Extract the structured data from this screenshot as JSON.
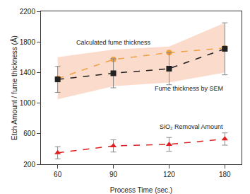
{
  "chart_data": {
    "type": "line",
    "x_label": "Process Time (sec.)",
    "y_label": "Etch Amount / fume thickness (Å)",
    "categories": [
      "60",
      "90",
      "120",
      "180"
    ],
    "ylim": [
      200,
      2200
    ],
    "yticks": [
      200,
      600,
      1000,
      1400,
      1800,
      2200
    ],
    "grid": false,
    "series": [
      {
        "name": "Calculated fume thickness",
        "color": "#f0a040",
        "marker": "circle",
        "line_style": "dash",
        "values": [
          1320,
          1570,
          1660,
          1720
        ],
        "band_upper": [
          1600,
          1700,
          1740,
          2050
        ],
        "band_lower": [
          1050,
          1220,
          1270,
          1400
        ]
      },
      {
        "name": "Fume thickness by SEM",
        "color": "#222222",
        "marker": "square",
        "line_style": "dash",
        "values": [
          1310,
          1390,
          1450,
          1710
        ],
        "error": [
          170,
          190,
          210,
          340
        ]
      },
      {
        "name": "SiO₂ Removal Amount",
        "color": "#e02020",
        "marker": "triangle-up",
        "line_style": "dash",
        "values": [
          350,
          440,
          460,
          530
        ],
        "error": [
          80,
          80,
          90,
          80
        ]
      }
    ],
    "annotations": [
      {
        "text": "Calculated fume thickness",
        "x": "90",
        "y": 1790
      },
      {
        "text": "Fume thickness by SEM",
        "x": "180",
        "y": 1190
      },
      {
        "text": "SiO₂ Removal Amount",
        "x": "180",
        "y": 690
      }
    ]
  }
}
